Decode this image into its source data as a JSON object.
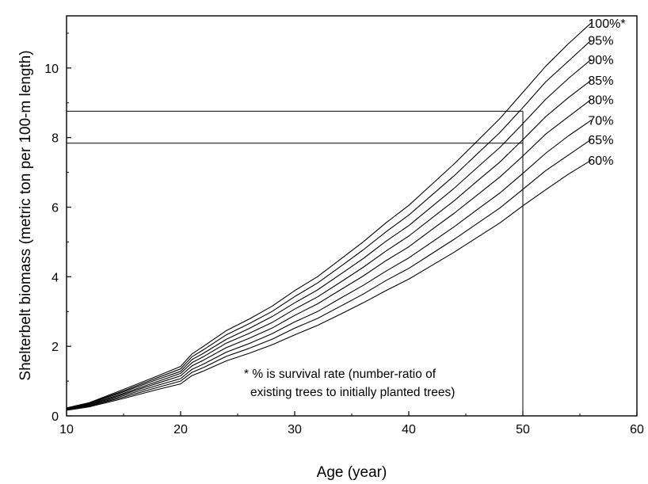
{
  "chart_data": {
    "type": "line",
    "title": "",
    "xlabel": "Age (year)",
    "ylabel": "Shelterbelt biomass (metric ton per 100-m length)",
    "xlim": [
      10,
      60
    ],
    "ylim": [
      0,
      11.5
    ],
    "xticks": [
      10,
      20,
      30,
      40,
      50,
      60
    ],
    "yticks": [
      0,
      2,
      4,
      6,
      8,
      10
    ],
    "grid": false,
    "legend": "inline labels at right end of each line",
    "x": [
      10,
      12,
      15,
      18,
      20,
      21,
      22,
      24,
      26,
      28,
      30,
      32,
      34,
      36,
      38,
      40,
      42,
      44,
      46,
      48,
      50,
      52,
      54,
      56
    ],
    "series": [
      {
        "name": "100%*",
        "values": [
          0.23,
          0.38,
          0.76,
          1.15,
          1.42,
          1.78,
          2.0,
          2.45,
          2.78,
          3.15,
          3.6,
          4.0,
          4.5,
          5.0,
          5.55,
          6.05,
          6.65,
          7.25,
          7.9,
          8.55,
          9.3,
          10.05,
          10.7,
          11.3
        ]
      },
      {
        "name": "95%",
        "values": [
          0.22,
          0.37,
          0.72,
          1.1,
          1.35,
          1.7,
          1.9,
          2.33,
          2.65,
          3.0,
          3.43,
          3.82,
          4.29,
          4.77,
          5.29,
          5.77,
          6.34,
          6.91,
          7.53,
          8.15,
          8.86,
          9.6,
          10.2,
          10.8
        ]
      },
      {
        "name": "90%",
        "values": [
          0.21,
          0.35,
          0.69,
          1.05,
          1.28,
          1.62,
          1.8,
          2.2,
          2.51,
          2.85,
          3.25,
          3.62,
          4.07,
          4.52,
          5.02,
          5.47,
          6.01,
          6.55,
          7.14,
          7.72,
          8.4,
          9.1,
          9.7,
          10.25
        ]
      },
      {
        "name": "85%",
        "values": [
          0.2,
          0.33,
          0.65,
          0.99,
          1.22,
          1.53,
          1.7,
          2.09,
          2.37,
          2.68,
          3.07,
          3.42,
          3.84,
          4.27,
          4.74,
          5.17,
          5.68,
          6.19,
          6.75,
          7.3,
          7.94,
          8.6,
          9.15,
          9.65
        ]
      },
      {
        "name": "80%",
        "values": [
          0.19,
          0.31,
          0.62,
          0.94,
          1.15,
          1.44,
          1.6,
          1.96,
          2.23,
          2.52,
          2.89,
          3.22,
          3.62,
          4.02,
          4.46,
          4.86,
          5.35,
          5.83,
          6.35,
          6.87,
          7.47,
          8.1,
          8.6,
          9.1
        ]
      },
      {
        "name": "70%",
        "values": [
          0.18,
          0.29,
          0.58,
          0.88,
          1.07,
          1.34,
          1.49,
          1.83,
          2.08,
          2.36,
          2.7,
          3.0,
          3.38,
          3.75,
          4.16,
          4.54,
          4.99,
          5.44,
          5.93,
          6.41,
          6.97,
          7.55,
          8.05,
          8.5
        ]
      },
      {
        "name": "65%",
        "values": [
          0.17,
          0.28,
          0.54,
          0.82,
          1.0,
          1.25,
          1.39,
          1.71,
          1.94,
          2.2,
          2.52,
          2.8,
          3.15,
          3.5,
          3.89,
          4.24,
          4.66,
          5.08,
          5.53,
          5.98,
          6.51,
          7.05,
          7.5,
          7.95
        ]
      },
      {
        "name": "60%",
        "values": [
          0.16,
          0.26,
          0.5,
          0.76,
          0.92,
          1.16,
          1.29,
          1.58,
          1.8,
          2.04,
          2.33,
          2.6,
          2.92,
          3.25,
          3.6,
          3.93,
          4.32,
          4.71,
          5.13,
          5.55,
          6.04,
          6.5,
          6.95,
          7.35
        ]
      }
    ],
    "reference_lines": {
      "vertical_x": 50,
      "horizontal_y": [
        8.76,
        7.84
      ]
    },
    "annotation": [
      "* % is survival rate (number-ratio of",
      "existing trees to initially planted trees)"
    ]
  }
}
